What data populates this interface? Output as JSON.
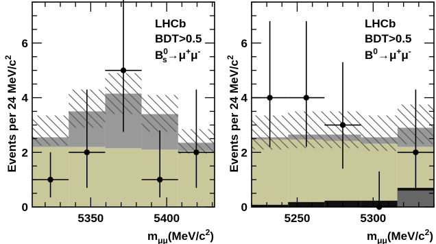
{
  "chart_data": [
    {
      "type": "bar",
      "bins": [
        {
          "x0": 5311.5,
          "x1": 5335.5,
          "expected_total": 2.55,
          "band_low": 2.25,
          "band_high": 3.35
        },
        {
          "x0": 5335.5,
          "x1": 5359.5,
          "expected_total": 3.5,
          "band_low": 2.9,
          "band_high": 4.3
        },
        {
          "x0": 5359.5,
          "x1": 5383.5,
          "expected_total": 4.15,
          "band_low": 3.4,
          "band_high": 4.9
        },
        {
          "x0": 5383.5,
          "x1": 5407.5,
          "expected_total": 3.4,
          "band_low": 2.75,
          "band_high": 4.1
        },
        {
          "x0": 5407.5,
          "x1": 5431.5,
          "expected_total": 2.35,
          "band_low": 1.95,
          "band_high": 2.85
        }
      ],
      "series": [
        {
          "name": "",
          "values": [
            2.2,
            2.2,
            2.15,
            2.1,
            2.05
          ]
        },
        {
          "name": "",
          "values": [
            0.35,
            1.3,
            2.0,
            1.3,
            0.3
          ]
        }
      ],
      "observed": [
        {
          "x": 5323.5,
          "y": 1,
          "err_low": 0.65,
          "err_high": 1.0
        },
        {
          "x": 5347.5,
          "y": 2,
          "err_low": 1.3,
          "err_high": 2.3
        },
        {
          "x": 5371.5,
          "y": 5,
          "err_low": 2.25,
          "err_high": 3.0
        },
        {
          "x": 5395.5,
          "y": 1,
          "err_low": 0.65,
          "err_high": 1.8
        },
        {
          "x": 5419.5,
          "y": 2,
          "err_low": 1.3,
          "err_high": 2.3
        }
      ],
      "xlim": [
        5311.5,
        5431.5
      ],
      "ylim": [
        0,
        7.5
      ],
      "xticks": [
        5350,
        5400
      ],
      "yticks": [
        0,
        2,
        4,
        6
      ],
      "xlabel": "m",
      "xlabel_sub": "μμ",
      "xlabel_unit": "(MeV/c",
      "xlabel_unit_sup": "2",
      "xlabel_unit_close": ")",
      "ylabel": "Events per 24 MeV/c",
      "ylabel_sup": "2",
      "annotations": [
        "LHCb",
        "BDT>0.5"
      ],
      "decay": {
        "base": "B",
        "sub": "s",
        "sup": "0",
        "arrow": "→μ",
        "mu_sup1": "+",
        "mu": "μ",
        "mu_sup2": "-"
      },
      "colors": {
        "combinatorial": "#c8c89a",
        "signal": "#999999",
        "hatch": "#555555"
      }
    },
    {
      "type": "bar",
      "bins": [
        {
          "x0": 5220,
          "x1": 5244,
          "expected_total": 2.55,
          "band_low": 2.1,
          "band_high": 3.35
        },
        {
          "x0": 5244,
          "x1": 5268,
          "expected_total": 2.65,
          "band_low": 2.15,
          "band_high": 3.5
        },
        {
          "x0": 5268,
          "x1": 5292,
          "expected_total": 2.65,
          "band_low": 2.15,
          "band_high": 3.5
        },
        {
          "x0": 5292,
          "x1": 5316,
          "expected_total": 2.55,
          "band_low": 2.05,
          "band_high": 3.35
        },
        {
          "x0": 5316,
          "x1": 5340,
          "expected_total": 2.9,
          "band_low": 2.3,
          "band_high": 3.75
        }
      ],
      "series": [
        {
          "name": "",
          "values": [
            2.47,
            2.47,
            2.42,
            2.32,
            2.2
          ]
        },
        {
          "name": "",
          "values": [
            0.08,
            0.18,
            0.23,
            0.23,
            0.7
          ]
        }
      ],
      "observed": [
        {
          "x": 5232,
          "y": 4,
          "err_low": 1.8,
          "err_high": 2.8
        },
        {
          "x": 5256,
          "y": 4,
          "err_low": 1.8,
          "err_high": 2.8
        },
        {
          "x": 5280,
          "y": 3,
          "err_low": 1.6,
          "err_high": 2.3
        },
        {
          "x": 5304,
          "y": 0,
          "err_low": 0,
          "err_high": 1.3
        },
        {
          "x": 5328,
          "y": 2,
          "err_low": 1.3,
          "err_high": 2.3
        }
      ],
      "xlim": [
        5220,
        5340
      ],
      "ylim": [
        0,
        7.5
      ],
      "xticks": [
        5250,
        5300
      ],
      "yticks": [
        0,
        2,
        4,
        6
      ],
      "xlabel": "m",
      "xlabel_sub": "μμ",
      "xlabel_unit": "(MeV/c",
      "xlabel_unit_sup": "2",
      "xlabel_unit_close": ")",
      "ylabel": "Events per 24 MeV/c",
      "ylabel_sup": "2",
      "annotations": [
        "LHCb",
        "BDT>0.5"
      ],
      "decay": {
        "base": "B",
        "sub": "",
        "sup": "0",
        "arrow": "→μ",
        "mu_sup1": "+",
        "mu": "μ",
        "mu_sup2": "-"
      },
      "colors": {
        "combinatorial": "#c8c89a",
        "signal": "#999999",
        "peaking": "#111111",
        "hatch": "#555555"
      }
    }
  ]
}
